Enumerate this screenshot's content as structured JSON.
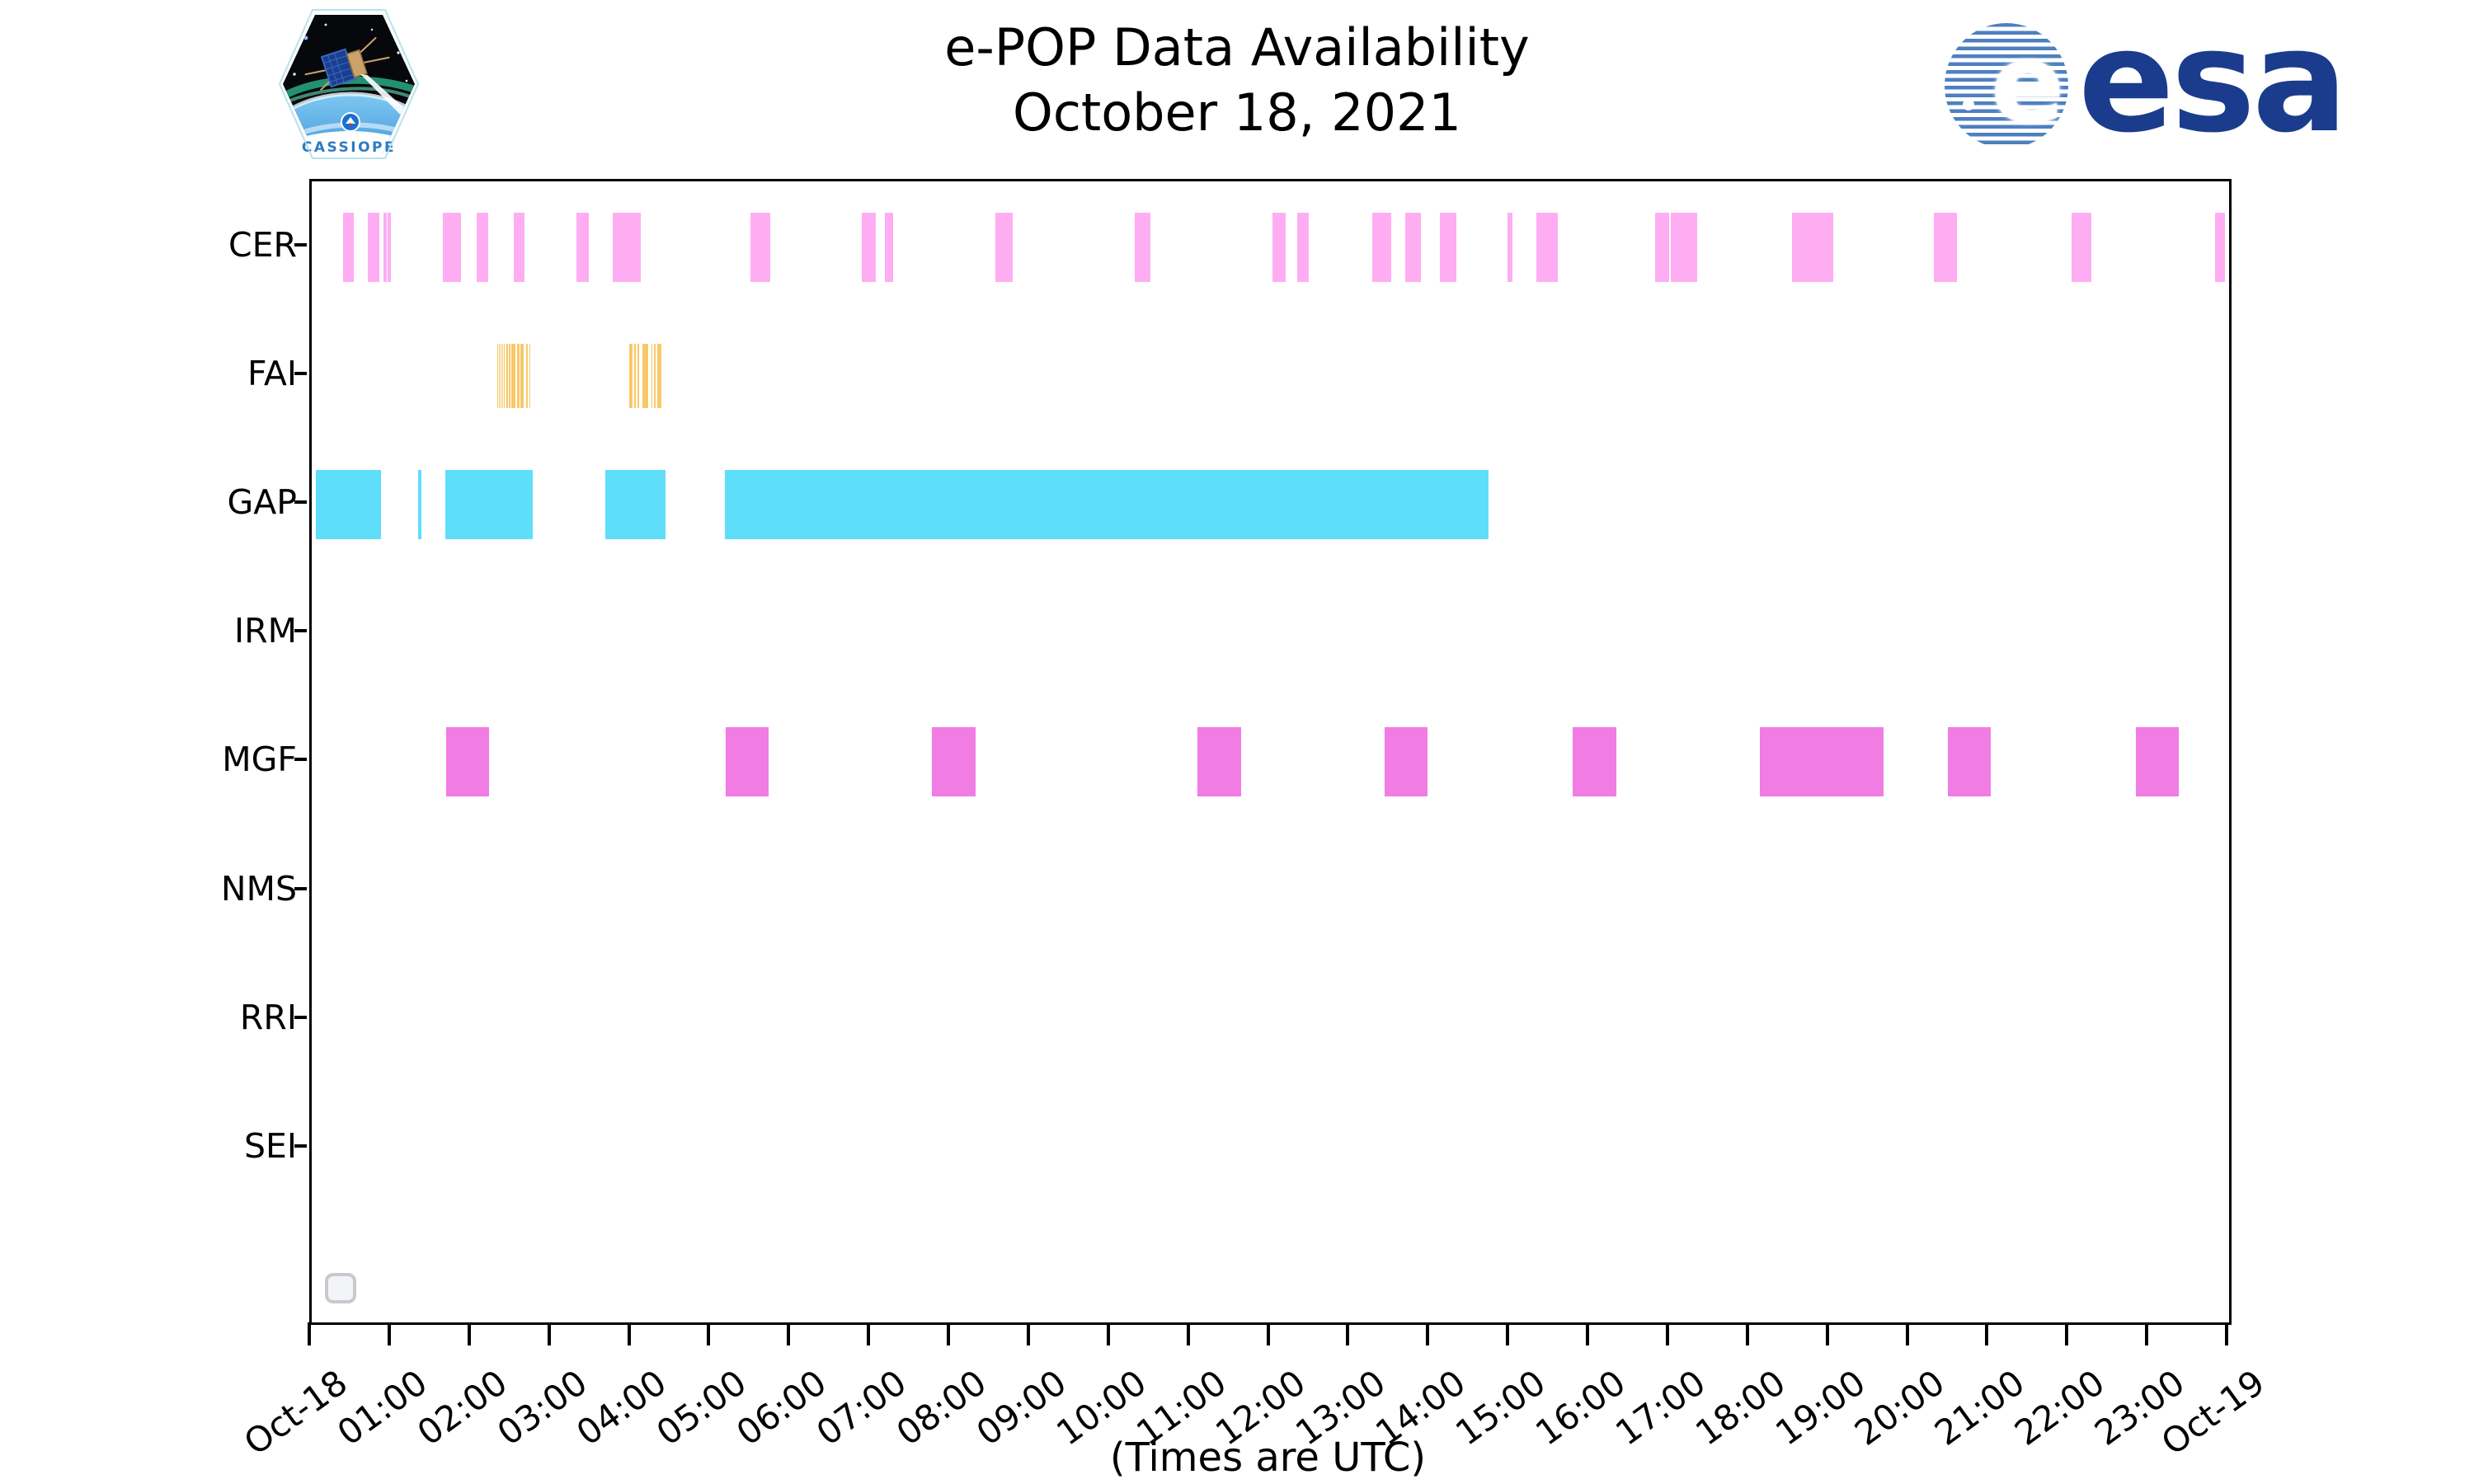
{
  "title": {
    "line1": "e-POP Data Availability",
    "line2": "October 18, 2021"
  },
  "footer_note": "(Times are UTC)",
  "logos": {
    "cassiope_patch_label": "CASSIOPE",
    "esa_wordmark": "esa"
  },
  "colors": {
    "cer_bar": "#ffadf3",
    "fai_bar": "#f9c869",
    "gap_bar": "#5fdefa",
    "mgf_bar": "#f17ce4",
    "axis": "#000000",
    "esa_navy": "#1b3c8c",
    "esa_globe_stripe": "#4d80c0",
    "widget_border": "#c8c9cd"
  },
  "chart_data": {
    "type": "timeline",
    "title": "e-POP Data Availability",
    "subtitle": "October 18, 2021",
    "xlabel": "(Times are UTC)",
    "x_axis": {
      "units": "decimal_hours_utc",
      "range_hours": [
        0,
        24
      ],
      "tick_labels": [
        "Oct-18",
        "01:00",
        "02:00",
        "03:00",
        "04:00",
        "05:00",
        "06:00",
        "07:00",
        "08:00",
        "09:00",
        "10:00",
        "11:00",
        "12:00",
        "13:00",
        "14:00",
        "15:00",
        "16:00",
        "17:00",
        "18:00",
        "19:00",
        "20:00",
        "21:00",
        "22:00",
        "23:00",
        "Oct-19"
      ]
    },
    "legend_position": "none",
    "grid": false,
    "rows": [
      {
        "label": "CER",
        "color": "#ffadf3",
        "intervals_hours": [
          [
            0.39,
            0.53
          ],
          [
            0.7,
            0.85
          ],
          [
            0.9,
            0.94
          ],
          [
            0.95,
            0.99
          ],
          [
            1.64,
            1.87
          ],
          [
            2.06,
            2.21
          ],
          [
            2.53,
            2.66
          ],
          [
            3.31,
            3.47
          ],
          [
            3.77,
            4.12
          ],
          [
            5.49,
            5.74
          ],
          [
            6.88,
            7.06
          ],
          [
            7.17,
            7.28
          ],
          [
            8.56,
            8.77
          ],
          [
            10.3,
            10.5
          ],
          [
            12.03,
            12.19
          ],
          [
            12.34,
            12.48
          ],
          [
            13.27,
            13.51
          ],
          [
            13.69,
            13.88
          ],
          [
            14.12,
            14.33
          ],
          [
            14.97,
            15.03
          ],
          [
            15.33,
            15.6
          ],
          [
            16.82,
            16.99
          ],
          [
            17.01,
            17.34
          ],
          [
            18.53,
            19.04
          ],
          [
            20.3,
            20.59
          ],
          [
            22.03,
            22.28
          ],
          [
            23.82,
            23.95
          ]
        ]
      },
      {
        "label": "FAI",
        "color": "#f9c869",
        "intervals_hours": [
          [
            2.32,
            2.33
          ],
          [
            2.34,
            2.35
          ],
          [
            2.36,
            2.37
          ],
          [
            2.38,
            2.39
          ],
          [
            2.4,
            2.41
          ],
          [
            2.44,
            2.46
          ],
          [
            2.47,
            2.49
          ],
          [
            2.5,
            2.55
          ],
          [
            2.57,
            2.6
          ],
          [
            2.61,
            2.65
          ],
          [
            2.68,
            2.7
          ],
          [
            2.72,
            2.73
          ],
          [
            3.97,
            4.02
          ],
          [
            4.04,
            4.05
          ],
          [
            4.08,
            4.09
          ],
          [
            4.14,
            4.21
          ],
          [
            4.25,
            4.26
          ],
          [
            4.28,
            4.3
          ],
          [
            4.33,
            4.34
          ],
          [
            4.35,
            4.38
          ]
        ]
      },
      {
        "label": "GAP",
        "color": "#5fdefa",
        "intervals_hours": [
          [
            0.05,
            0.87
          ],
          [
            1.33,
            1.37
          ],
          [
            1.67,
            2.77
          ],
          [
            3.67,
            4.43
          ],
          [
            5.17,
            14.73
          ]
        ]
      },
      {
        "label": "IRM",
        "color": null,
        "intervals_hours": []
      },
      {
        "label": "MGF",
        "color": "#f17ce4",
        "intervals_hours": [
          [
            1.68,
            2.22
          ],
          [
            5.18,
            5.72
          ],
          [
            7.76,
            8.31
          ],
          [
            11.09,
            11.63
          ],
          [
            13.43,
            13.97
          ],
          [
            15.78,
            16.33
          ],
          [
            18.13,
            19.67
          ],
          [
            20.48,
            21.02
          ],
          [
            22.83,
            23.37
          ]
        ]
      },
      {
        "label": "NMS",
        "color": null,
        "intervals_hours": []
      },
      {
        "label": "RRI",
        "color": null,
        "intervals_hours": []
      },
      {
        "label": "SEI",
        "color": null,
        "intervals_hours": []
      }
    ]
  }
}
